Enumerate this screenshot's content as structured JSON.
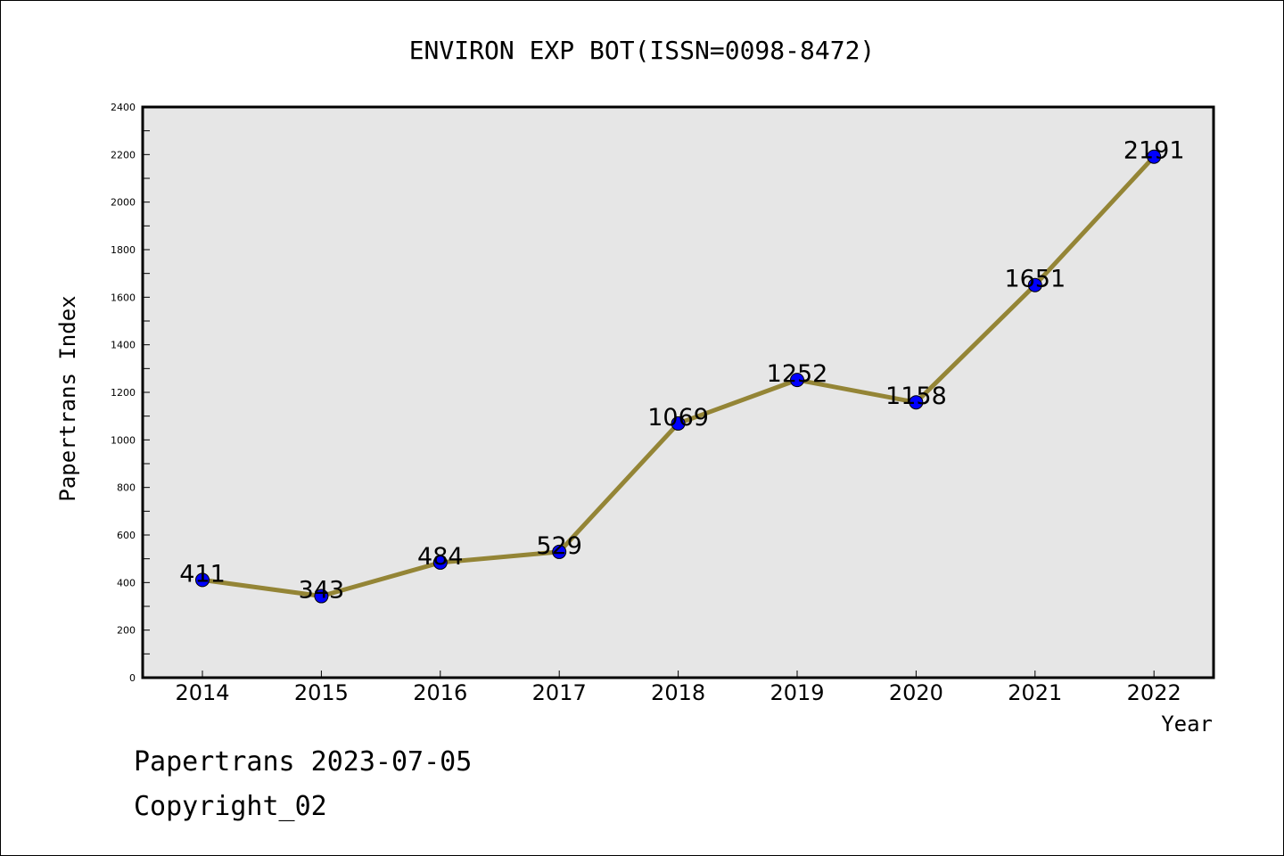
{
  "footer": {
    "line1": "Papertrans 2023-07-05",
    "line2": "Copyright_02"
  },
  "chart_data": {
    "type": "line",
    "title": "ENVIRON EXP BOT(ISSN=0098-8472)",
    "xlabel": "Year",
    "ylabel": "Papertrans Index",
    "categories": [
      "2014",
      "2015",
      "2016",
      "2017",
      "2018",
      "2019",
      "2020",
      "2021",
      "2022"
    ],
    "values": [
      411,
      343,
      484,
      529,
      1069,
      1252,
      1158,
      1651,
      2191
    ],
    "data_labels": [
      "411",
      "343",
      "484",
      "529",
      "1069",
      "1252",
      "1158",
      "1651",
      "2191"
    ],
    "ylim": [
      0,
      2400
    ],
    "yticks": [
      "0",
      "200",
      "400",
      "600",
      "800",
      "1000",
      "1200",
      "1400",
      "1600",
      "1800",
      "2000",
      "2200",
      "2400"
    ],
    "grid": false,
    "legend": "none",
    "colors": {
      "plot_background": "#e6e6e6",
      "line": "#948536",
      "marker": "#0000ff"
    }
  }
}
